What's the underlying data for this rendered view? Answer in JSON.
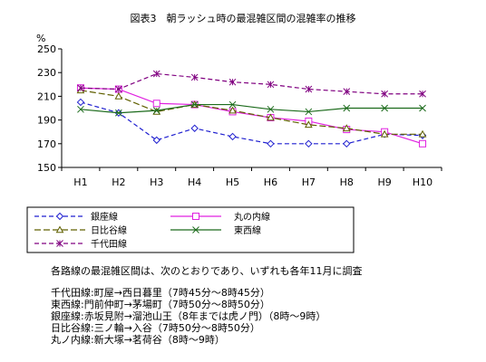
{
  "chart_data": {
    "type": "line",
    "title": "図表3　朝ラッシュ時の最混雑区間の混雑率の推移",
    "yunit": "%",
    "categories": [
      "H1",
      "H2",
      "H3",
      "H4",
      "H5",
      "H6",
      "H7",
      "H8",
      "H9",
      "H10"
    ],
    "ylim": [
      150,
      250
    ],
    "yticks": [
      150,
      170,
      190,
      210,
      230,
      250
    ],
    "grid": false,
    "legend_position": "bottom",
    "series": [
      {
        "name": "銀座線",
        "color": "#1f1fd0",
        "dash": "5,3",
        "marker": "diamond",
        "values": [
          205,
          196,
          173,
          183,
          176,
          170,
          170,
          170,
          178,
          177
        ]
      },
      {
        "name": "丸の内線",
        "color": "#e020e0",
        "dash": "",
        "marker": "square",
        "values": [
          217,
          216,
          204,
          203,
          197,
          192,
          189,
          182,
          180,
          170
        ]
      },
      {
        "name": "日比谷線",
        "color": "#606000",
        "dash": "7,3",
        "marker": "triangle",
        "values": [
          215,
          210,
          197,
          203,
          198,
          192,
          186,
          183,
          178,
          178
        ]
      },
      {
        "name": "東西線",
        "color": "#1c6b1c",
        "dash": "",
        "marker": "cross",
        "values": [
          199,
          196,
          198,
          203,
          203,
          199,
          197,
          200,
          200,
          200
        ]
      },
      {
        "name": "千代田線",
        "color": "#800080",
        "dash": "5,3",
        "marker": "asterisk",
        "values": [
          217,
          216,
          229,
          226,
          222,
          220,
          216,
          214,
          212,
          212
        ]
      }
    ]
  },
  "notes": {
    "intro": "各路線の最混雑区間は、次のとおりであり、いずれも各年11月に調査",
    "lines": [
      "千代田線:町屋→西日暮里（7時45分～8時45分）",
      "東西線:門前仲町→茅場町（7時50分～8時50分）",
      "銀座線:赤坂見附→溜池山王（8年までは虎ノ門）（8時～9時）",
      "日比谷線:三ノ輪→入谷（7時50分～8時50分）",
      "丸ノ内線:新大塚→茗荷谷（8時～9時）"
    ]
  }
}
